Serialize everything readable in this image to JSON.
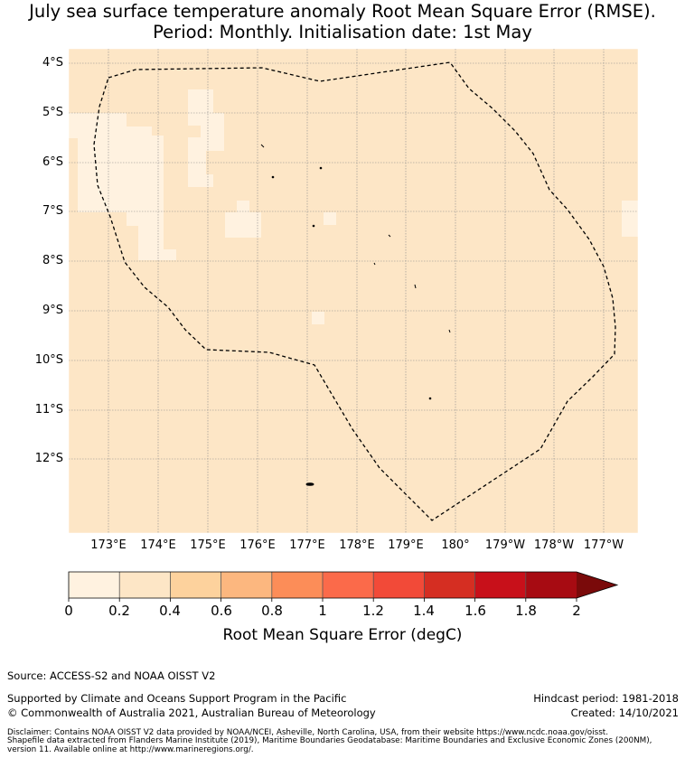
{
  "title_line1": "July sea surface temperature anomaly Root Mean Square Error (RMSE).",
  "title_line2": "Period: Monthly. Initialisation date: 1st May",
  "map": {
    "background_color": "#fde6c6",
    "latitude_labels": [
      "4°S",
      "5°S",
      "6°S",
      "7°S",
      "8°S",
      "9°S",
      "10°S",
      "11°S",
      "12°S"
    ],
    "longitude_labels": [
      "173°E",
      "174°E",
      "175°E",
      "176°E",
      "177°E",
      "178°E",
      "179°E",
      "180°",
      "179°W",
      "178°W",
      "177°W"
    ]
  },
  "colorbar": {
    "tick_labels": [
      "0",
      "0.2",
      "0.4",
      "0.6",
      "0.8",
      "1",
      "1.2",
      "1.4",
      "1.6",
      "1.8",
      "2"
    ],
    "colors": [
      "#fff2e0",
      "#fde6c6",
      "#fdd29d",
      "#fcb77f",
      "#fc8d58",
      "#fb6a4a",
      "#f24a38",
      "#d52e22",
      "#c8101a",
      "#a70b12"
    ],
    "extend_color": "#7a0a0a",
    "label": "Root Mean Square Error (degC)"
  },
  "footer": {
    "source": "Source: ACCESS-S2 and NOAA OISST V2",
    "supported": "Supported by Climate and Oceans Support Program in the Pacific",
    "copyright": "© Commonwealth of Australia 2021, Australian Bureau of Meteorology",
    "hindcast": "Hindcast period: 1981-2018",
    "created": "Created: 14/10/2021",
    "disclaimer1": "Disclaimer: Contains NOAA OISST V2 data provided by NOAA/NCEI, Asheville, North Carolina, USA, from their website https://www.ncdc.noaa.gov/oisst.",
    "disclaimer2": "Shapefile data extracted from Flanders Marine Institute (2019), Maritime Boundaries Geodatabase: Maritime Boundaries and Exclusive Economic Zones (200NM),",
    "disclaimer3": "version 11. Available online at http://www.marineregions.org/."
  }
}
